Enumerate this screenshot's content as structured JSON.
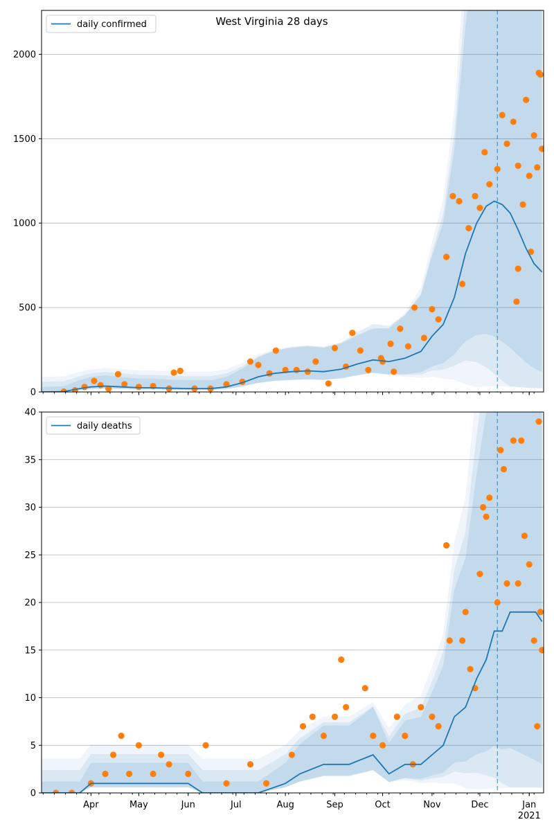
{
  "chart_data": [
    {
      "type": "line",
      "title": "West Virginia 28 days",
      "xlabel": "",
      "ylabel": "",
      "ylim": [
        0,
        2260
      ],
      "yticks": [
        0,
        500,
        1000,
        1500,
        2000
      ],
      "grid": "horizontal",
      "legend": "top-left",
      "forecast_start": "2020-12-12",
      "series": [
        {
          "name": "daily confirmed",
          "kind": "line",
          "color": "#1f77b4",
          "points": [
            [
              "2020-03-01",
              0
            ],
            [
              "2020-03-15",
              2
            ],
            [
              "2020-03-25",
              20
            ],
            [
              "2020-04-01",
              30
            ],
            [
              "2020-04-10",
              35
            ],
            [
              "2020-04-20",
              30
            ],
            [
              "2020-05-01",
              25
            ],
            [
              "2020-05-10",
              25
            ],
            [
              "2020-05-20",
              22
            ],
            [
              "2020-06-01",
              20
            ],
            [
              "2020-06-15",
              20
            ],
            [
              "2020-06-25",
              30
            ],
            [
              "2020-07-05",
              55
            ],
            [
              "2020-07-15",
              90
            ],
            [
              "2020-07-25",
              110
            ],
            [
              "2020-08-05",
              120
            ],
            [
              "2020-08-15",
              125
            ],
            [
              "2020-08-25",
              120
            ],
            [
              "2020-09-05",
              135
            ],
            [
              "2020-09-15",
              165
            ],
            [
              "2020-09-25",
              190
            ],
            [
              "2020-10-05",
              180
            ],
            [
              "2020-10-15",
              200
            ],
            [
              "2020-10-25",
              240
            ],
            [
              "2020-11-01",
              330
            ],
            [
              "2020-11-08",
              400
            ],
            [
              "2020-11-15",
              560
            ],
            [
              "2020-11-22",
              820
            ],
            [
              "2020-11-29",
              1000
            ],
            [
              "2020-12-05",
              1100
            ],
            [
              "2020-12-10",
              1130
            ],
            [
              "2020-12-15",
              1110
            ],
            [
              "2020-12-20",
              1060
            ],
            [
              "2020-12-25",
              960
            ],
            [
              "2020-12-30",
              850
            ],
            [
              "2021-01-04",
              760
            ],
            [
              "2021-01-09",
              710
            ]
          ]
        },
        {
          "name": "",
          "kind": "scatter",
          "color": "#ff7f0e",
          "points": [
            [
              "2020-03-15",
              2
            ],
            [
              "2020-03-22",
              10
            ],
            [
              "2020-03-28",
              30
            ],
            [
              "2020-04-03",
              65
            ],
            [
              "2020-04-07",
              40
            ],
            [
              "2020-04-12",
              20
            ],
            [
              "2020-04-18",
              105
            ],
            [
              "2020-04-22",
              45
            ],
            [
              "2020-05-01",
              30
            ],
            [
              "2020-05-10",
              35
            ],
            [
              "2020-05-20",
              20
            ],
            [
              "2020-05-23",
              115
            ],
            [
              "2020-05-27",
              125
            ],
            [
              "2020-06-05",
              20
            ],
            [
              "2020-06-15",
              20
            ],
            [
              "2020-06-25",
              45
            ],
            [
              "2020-07-05",
              60
            ],
            [
              "2020-07-10",
              180
            ],
            [
              "2020-07-15",
              160
            ],
            [
              "2020-07-22",
              110
            ],
            [
              "2020-07-26",
              245
            ],
            [
              "2020-08-01",
              130
            ],
            [
              "2020-08-08",
              130
            ],
            [
              "2020-08-15",
              120
            ],
            [
              "2020-08-20",
              180
            ],
            [
              "2020-08-28",
              50
            ],
            [
              "2020-09-01",
              260
            ],
            [
              "2020-09-08",
              150
            ],
            [
              "2020-09-12",
              350
            ],
            [
              "2020-09-17",
              245
            ],
            [
              "2020-09-22",
              130
            ],
            [
              "2020-09-30",
              200
            ],
            [
              "2020-10-01",
              180
            ],
            [
              "2020-10-06",
              285
            ],
            [
              "2020-10-08",
              120
            ],
            [
              "2020-10-12",
              375
            ],
            [
              "2020-10-17",
              270
            ],
            [
              "2020-10-21",
              500
            ],
            [
              "2020-10-27",
              320
            ],
            [
              "2020-11-01",
              490
            ],
            [
              "2020-11-05",
              430
            ],
            [
              "2020-11-10",
              800
            ],
            [
              "2020-11-14",
              1160
            ],
            [
              "2020-11-18",
              1130
            ],
            [
              "2020-11-20",
              640
            ],
            [
              "2020-11-24",
              970
            ],
            [
              "2020-11-28",
              1160
            ],
            [
              "2020-12-01",
              1090
            ],
            [
              "2020-12-04",
              1420
            ],
            [
              "2020-12-07",
              1230
            ],
            [
              "2020-12-12",
              1320
            ],
            [
              "2020-12-15",
              1640
            ],
            [
              "2020-12-18",
              1470
            ],
            [
              "2020-12-22",
              1600
            ],
            [
              "2020-12-25",
              1340
            ],
            [
              "2020-12-28",
              1110
            ],
            [
              "2020-12-30",
              1730
            ],
            [
              "2020-12-25",
              730
            ],
            [
              "2020-12-24",
              535
            ],
            [
              "2021-01-01",
              1280
            ],
            [
              "2021-01-02",
              830
            ],
            [
              "2021-01-04",
              1520
            ],
            [
              "2021-01-06",
              1330
            ],
            [
              "2021-01-07",
              1890
            ],
            [
              "2021-01-08",
              1880
            ],
            [
              "2021-01-09",
              1440
            ]
          ]
        }
      ]
    },
    {
      "type": "line",
      "title": "",
      "xlabel": "",
      "ylabel": "",
      "ylim": [
        0,
        40
      ],
      "yticks": [
        0,
        5,
        10,
        15,
        20,
        25,
        30,
        35,
        40
      ],
      "xticks": [
        "Apr",
        "May",
        "Jun",
        "Jul",
        "Aug",
        "Sep",
        "Oct",
        "Nov",
        "Dec",
        "Jan"
      ],
      "xtick_year": "2021",
      "grid": "horizontal",
      "legend": "top-left",
      "forecast_start": "2020-12-12",
      "series": [
        {
          "name": "daily deaths",
          "kind": "line",
          "color": "#1f77b4",
          "points": [
            [
              "2020-03-01",
              0
            ],
            [
              "2020-03-25",
              0
            ],
            [
              "2020-04-01",
              1
            ],
            [
              "2020-05-15",
              1
            ],
            [
              "2020-06-01",
              1
            ],
            [
              "2020-06-10",
              0
            ],
            [
              "2020-07-15",
              0
            ],
            [
              "2020-08-01",
              1
            ],
            [
              "2020-08-10",
              2
            ],
            [
              "2020-08-25",
              3
            ],
            [
              "2020-09-10",
              3
            ],
            [
              "2020-09-25",
              4
            ],
            [
              "2020-10-05",
              2
            ],
            [
              "2020-10-15",
              3
            ],
            [
              "2020-10-25",
              3
            ],
            [
              "2020-11-01",
              4
            ],
            [
              "2020-11-08",
              5
            ],
            [
              "2020-11-15",
              8
            ],
            [
              "2020-11-22",
              9
            ],
            [
              "2020-11-29",
              12
            ],
            [
              "2020-12-05",
              14
            ],
            [
              "2020-12-10",
              17
            ],
            [
              "2020-12-15",
              17
            ],
            [
              "2020-12-20",
              19
            ],
            [
              "2020-12-30",
              19
            ],
            [
              "2021-01-05",
              19
            ],
            [
              "2021-01-09",
              18
            ]
          ]
        },
        {
          "name": "",
          "kind": "scatter",
          "color": "#ff7f0e",
          "points": [
            [
              "2020-03-10",
              0
            ],
            [
              "2020-03-20",
              0
            ],
            [
              "2020-04-01",
              1
            ],
            [
              "2020-04-10",
              2
            ],
            [
              "2020-04-15",
              4
            ],
            [
              "2020-04-20",
              6
            ],
            [
              "2020-04-25",
              2
            ],
            [
              "2020-05-01",
              5
            ],
            [
              "2020-05-10",
              2
            ],
            [
              "2020-05-15",
              4
            ],
            [
              "2020-05-20",
              3
            ],
            [
              "2020-06-01",
              2
            ],
            [
              "2020-06-12",
              5
            ],
            [
              "2020-06-25",
              1
            ],
            [
              "2020-07-10",
              3
            ],
            [
              "2020-07-20",
              1
            ],
            [
              "2020-08-05",
              4
            ],
            [
              "2020-08-12",
              7
            ],
            [
              "2020-08-18",
              8
            ],
            [
              "2020-08-25",
              6
            ],
            [
              "2020-09-01",
              8
            ],
            [
              "2020-09-05",
              14
            ],
            [
              "2020-09-08",
              9
            ],
            [
              "2020-09-20",
              11
            ],
            [
              "2020-09-25",
              6
            ],
            [
              "2020-10-01",
              5
            ],
            [
              "2020-10-10",
              8
            ],
            [
              "2020-10-15",
              6
            ],
            [
              "2020-10-20",
              3
            ],
            [
              "2020-10-25",
              9
            ],
            [
              "2020-11-01",
              8
            ],
            [
              "2020-11-05",
              7
            ],
            [
              "2020-11-10",
              26
            ],
            [
              "2020-11-12",
              16
            ],
            [
              "2020-11-20",
              16
            ],
            [
              "2020-11-22",
              19
            ],
            [
              "2020-11-25",
              13
            ],
            [
              "2020-11-28",
              11
            ],
            [
              "2020-12-01",
              23
            ],
            [
              "2020-12-03",
              30
            ],
            [
              "2020-12-05",
              29
            ],
            [
              "2020-12-07",
              31
            ],
            [
              "2020-12-12",
              20
            ],
            [
              "2020-12-14",
              36
            ],
            [
              "2020-12-16",
              34
            ],
            [
              "2020-12-18",
              22
            ],
            [
              "2020-12-22",
              37
            ],
            [
              "2020-12-25",
              22
            ],
            [
              "2020-12-27",
              37
            ],
            [
              "2020-12-29",
              27
            ],
            [
              "2021-01-01",
              24
            ],
            [
              "2021-01-04",
              16
            ],
            [
              "2021-01-06",
              7
            ],
            [
              "2021-01-07",
              39
            ],
            [
              "2021-01-08",
              19
            ],
            [
              "2021-01-09",
              15
            ]
          ]
        }
      ]
    }
  ]
}
